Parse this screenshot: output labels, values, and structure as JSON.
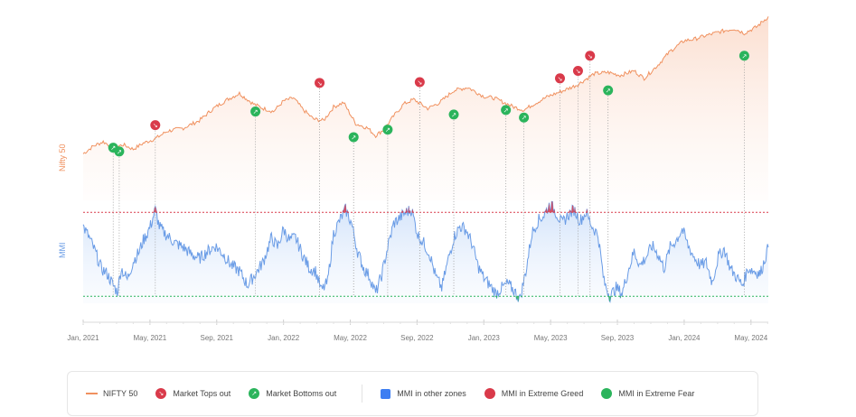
{
  "chart_data": {
    "type": "line",
    "x_ticks": [
      "Jan, 2021",
      "May, 2021",
      "Sep, 2021",
      "Jan, 2022",
      "May, 2022",
      "Sep, 2022",
      "Jan, 2023",
      "May, 2023",
      "Sep, 2023",
      "Jan, 2024",
      "May, 2024"
    ],
    "x_range": [
      2021.0,
      2024.42
    ],
    "nifty": {
      "label": "Nifty 50",
      "ylim": [
        13500,
        23500
      ],
      "points": [
        [
          2021.0,
          14200
        ],
        [
          2021.05,
          14700
        ],
        [
          2021.1,
          15000
        ],
        [
          2021.15,
          14600
        ],
        [
          2021.2,
          14800
        ],
        [
          2021.25,
          14500
        ],
        [
          2021.3,
          14900
        ],
        [
          2021.36,
          15200
        ],
        [
          2021.42,
          15700
        ],
        [
          2021.5,
          15900
        ],
        [
          2021.58,
          16400
        ],
        [
          2021.65,
          17200
        ],
        [
          2021.72,
          17800
        ],
        [
          2021.78,
          18200
        ],
        [
          2021.85,
          17500
        ],
        [
          2021.9,
          17200
        ],
        [
          2021.95,
          17000
        ],
        [
          2022.0,
          17700
        ],
        [
          2022.05,
          17900
        ],
        [
          2022.1,
          17100
        ],
        [
          2022.15,
          16500
        ],
        [
          2022.2,
          16400
        ],
        [
          2022.25,
          17300
        ],
        [
          2022.3,
          17600
        ],
        [
          2022.36,
          16200
        ],
        [
          2022.42,
          15900
        ],
        [
          2022.46,
          15400
        ],
        [
          2022.5,
          15800
        ],
        [
          2022.55,
          16700
        ],
        [
          2022.6,
          17500
        ],
        [
          2022.65,
          17800
        ],
        [
          2022.72,
          17200
        ],
        [
          2022.78,
          17600
        ],
        [
          2022.85,
          18400
        ],
        [
          2022.92,
          18600
        ],
        [
          2023.0,
          18000
        ],
        [
          2023.05,
          17900
        ],
        [
          2023.1,
          17600
        ],
        [
          2023.15,
          17300
        ],
        [
          2023.2,
          17100
        ],
        [
          2023.25,
          17500
        ],
        [
          2023.32,
          18000
        ],
        [
          2023.4,
          18400
        ],
        [
          2023.47,
          18800
        ],
        [
          2023.55,
          19500
        ],
        [
          2023.62,
          19600
        ],
        [
          2023.68,
          19400
        ],
        [
          2023.75,
          19700
        ],
        [
          2023.8,
          19200
        ],
        [
          2023.87,
          20100
        ],
        [
          2023.93,
          21000
        ],
        [
          2024.0,
          21700
        ],
        [
          2024.05,
          21800
        ],
        [
          2024.1,
          22000
        ],
        [
          2024.18,
          22300
        ],
        [
          2024.25,
          22500
        ],
        [
          2024.3,
          22200
        ],
        [
          2024.36,
          22600
        ],
        [
          2024.42,
          23300
        ]
      ]
    },
    "mmi": {
      "label": "MMI",
      "ylim": [
        15,
        95
      ],
      "extreme_greed_threshold": 80,
      "extreme_fear_threshold": 20,
      "points": [
        [
          2021.0,
          70
        ],
        [
          2021.03,
          62
        ],
        [
          2021.06,
          52
        ],
        [
          2021.09,
          40
        ],
        [
          2021.12,
          36
        ],
        [
          2021.15,
          28
        ],
        [
          2021.17,
          23
        ],
        [
          2021.19,
          40
        ],
        [
          2021.22,
          32
        ],
        [
          2021.25,
          45
        ],
        [
          2021.28,
          52
        ],
        [
          2021.3,
          60
        ],
        [
          2021.32,
          65
        ],
        [
          2021.34,
          72
        ],
        [
          2021.36,
          82
        ],
        [
          2021.38,
          70
        ],
        [
          2021.4,
          66
        ],
        [
          2021.43,
          62
        ],
        [
          2021.46,
          58
        ],
        [
          2021.5,
          55
        ],
        [
          2021.54,
          50
        ],
        [
          2021.58,
          47
        ],
        [
          2021.62,
          52
        ],
        [
          2021.66,
          56
        ],
        [
          2021.7,
          50
        ],
        [
          2021.74,
          42
        ],
        [
          2021.78,
          38
        ],
        [
          2021.82,
          28
        ],
        [
          2021.86,
          36
        ],
        [
          2021.9,
          45
        ],
        [
          2021.94,
          62
        ],
        [
          2021.97,
          55
        ],
        [
          2022.0,
          68
        ],
        [
          2022.03,
          60
        ],
        [
          2022.06,
          62
        ],
        [
          2022.1,
          48
        ],
        [
          2022.13,
          40
        ],
        [
          2022.16,
          38
        ],
        [
          2022.19,
          24
        ],
        [
          2022.22,
          30
        ],
        [
          2022.25,
          65
        ],
        [
          2022.28,
          74
        ],
        [
          2022.31,
          82
        ],
        [
          2022.34,
          72
        ],
        [
          2022.37,
          52
        ],
        [
          2022.4,
          40
        ],
        [
          2022.43,
          34
        ],
        [
          2022.46,
          22
        ],
        [
          2022.49,
          35
        ],
        [
          2022.52,
          55
        ],
        [
          2022.55,
          72
        ],
        [
          2022.58,
          76
        ],
        [
          2022.61,
          80
        ],
        [
          2022.64,
          82
        ],
        [
          2022.67,
          64
        ],
        [
          2022.7,
          58
        ],
        [
          2022.73,
          50
        ],
        [
          2022.76,
          34
        ],
        [
          2022.79,
          26
        ],
        [
          2022.82,
          45
        ],
        [
          2022.85,
          62
        ],
        [
          2022.88,
          70
        ],
        [
          2022.91,
          68
        ],
        [
          2022.94,
          58
        ],
        [
          2022.97,
          42
        ],
        [
          2023.0,
          33
        ],
        [
          2023.03,
          28
        ],
        [
          2023.06,
          22
        ],
        [
          2023.09,
          26
        ],
        [
          2023.12,
          29
        ],
        [
          2023.15,
          24
        ],
        [
          2023.18,
          18
        ],
        [
          2023.21,
          38
        ],
        [
          2023.24,
          65
        ],
        [
          2023.27,
          74
        ],
        [
          2023.3,
          78
        ],
        [
          2023.33,
          86
        ],
        [
          2023.36,
          80
        ],
        [
          2023.39,
          72
        ],
        [
          2023.42,
          78
        ],
        [
          2023.45,
          82
        ],
        [
          2023.48,
          74
        ],
        [
          2023.51,
          80
        ],
        [
          2023.54,
          70
        ],
        [
          2023.57,
          64
        ],
        [
          2023.6,
          30
        ],
        [
          2023.63,
          20
        ],
        [
          2023.66,
          26
        ],
        [
          2023.69,
          22
        ],
        [
          2023.72,
          38
        ],
        [
          2023.75,
          52
        ],
        [
          2023.78,
          42
        ],
        [
          2023.81,
          48
        ],
        [
          2023.84,
          56
        ],
        [
          2023.87,
          50
        ],
        [
          2023.9,
          40
        ],
        [
          2023.93,
          55
        ],
        [
          2023.96,
          60
        ],
        [
          2023.99,
          68
        ],
        [
          2024.02,
          56
        ],
        [
          2024.05,
          48
        ],
        [
          2024.08,
          42
        ],
        [
          2024.11,
          44
        ],
        [
          2024.14,
          30
        ],
        [
          2024.17,
          48
        ],
        [
          2024.2,
          54
        ],
        [
          2024.23,
          40
        ],
        [
          2024.26,
          34
        ],
        [
          2024.29,
          28
        ],
        [
          2024.32,
          40
        ],
        [
          2024.35,
          38
        ],
        [
          2024.38,
          36
        ],
        [
          2024.42,
          55
        ]
      ]
    },
    "market_tops_out": [
      [
        2021.36,
        16100
      ],
      [
        2022.18,
        18900
      ],
      [
        2022.68,
        18950
      ],
      [
        2023.38,
        19200
      ],
      [
        2023.47,
        19700
      ],
      [
        2023.53,
        20700
      ]
    ],
    "market_bottoms_out": [
      [
        2021.15,
        14600
      ],
      [
        2021.18,
        14350
      ],
      [
        2021.86,
        17000
      ],
      [
        2022.35,
        15300
      ],
      [
        2022.52,
        15800
      ],
      [
        2022.85,
        16800
      ],
      [
        2023.11,
        17100
      ],
      [
        2023.2,
        16600
      ],
      [
        2023.62,
        18400
      ],
      [
        2024.3,
        20700
      ]
    ],
    "legend": {
      "nifty": "NIFTY 50",
      "tops": "Market Tops out",
      "bottoms": "Market Bottoms out",
      "other": "MMI in other zones",
      "greed": "MMI in Extreme Greed",
      "fear": "MMI in Extreme Fear"
    }
  },
  "axis_labels": {
    "top": "Nifty 50",
    "bottom": "MMI"
  },
  "colors": {
    "nifty": "#f0915f",
    "mmi": "#6a9ce6",
    "greed": "#d93a4a",
    "fear": "#2bb45c",
    "other": "#3d7ef2"
  },
  "icons": {
    "top_marker": "arrow-down-icon",
    "bottom_marker": "arrow-up-icon"
  }
}
